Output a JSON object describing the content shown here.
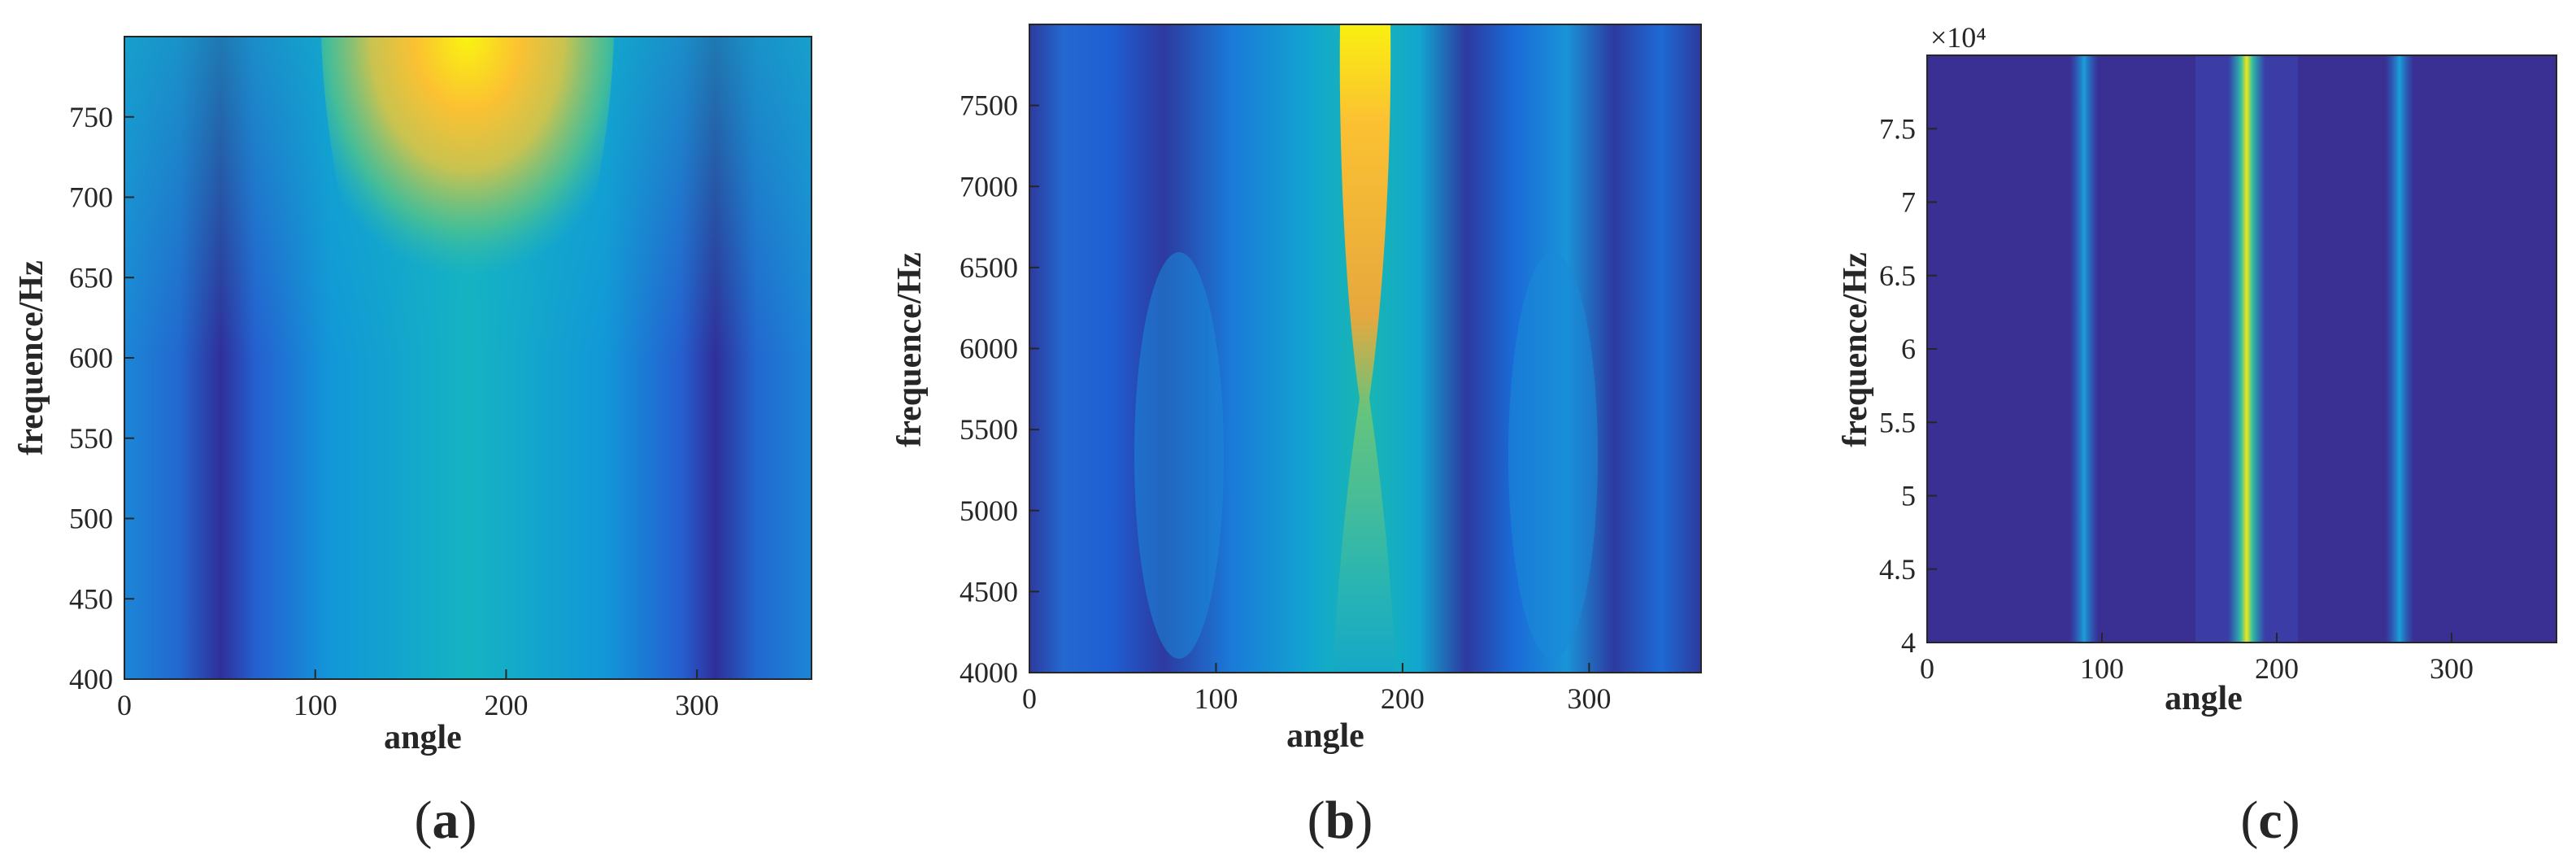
{
  "figure": {
    "panels": [
      {
        "caption_open": "(",
        "caption_letter": "a",
        "caption_close": ")"
      },
      {
        "caption_open": "(",
        "caption_letter": "b",
        "caption_close": ")"
      },
      {
        "caption_open": "(",
        "caption_letter": "c",
        "caption_close": ")"
      }
    ]
  },
  "chart_data": [
    {
      "type": "heatmap",
      "panel": "a",
      "title": "",
      "xlabel": "angle",
      "ylabel": "frequence/Hz",
      "xlim": [
        0,
        360
      ],
      "ylim": [
        400,
        800
      ],
      "xticks": [
        0,
        100,
        200,
        300
      ],
      "yticks": [
        400,
        450,
        500,
        550,
        600,
        650,
        700,
        750
      ],
      "ytick_labels": [
        "400",
        "450",
        "500",
        "550",
        "600",
        "650",
        "700",
        "750"
      ],
      "exponent_label": "",
      "colormap": "parula",
      "description_features": {
        "low_troughs_angles": [
          50,
          310
        ],
        "peak_angle": 180,
        "peak_region_freq": [
          560,
          800
        ]
      }
    },
    {
      "type": "heatmap",
      "panel": "b",
      "title": "",
      "xlabel": "angle",
      "ylabel": "frequence/Hz",
      "xlim": [
        0,
        360
      ],
      "ylim": [
        4000,
        8000
      ],
      "xticks": [
        0,
        100,
        200,
        300
      ],
      "yticks": [
        4000,
        4500,
        5000,
        5500,
        6000,
        6500,
        7000,
        7500
      ],
      "ytick_labels": [
        "4000",
        "4500",
        "5000",
        "5500",
        "6000",
        "6500",
        "7000",
        "7500"
      ],
      "exponent_label": "",
      "colormap": "parula",
      "description_features": {
        "peak_angle": 180,
        "peak_region_freq": [
          5700,
          8000
        ]
      }
    },
    {
      "type": "heatmap",
      "panel": "c",
      "title": "",
      "xlabel": "angle",
      "ylabel": "frequence/Hz",
      "xlim": [
        0,
        360
      ],
      "ylim": [
        4,
        8
      ],
      "xticks": [
        0,
        100,
        200,
        300
      ],
      "yticks": [
        4,
        4.5,
        5,
        5.5,
        6,
        6.5,
        7,
        7.5
      ],
      "ytick_labels": [
        "4",
        "4.5",
        "5",
        "5.5",
        "6",
        "6.5",
        "7",
        "7.5"
      ],
      "exponent_label": "×10⁴",
      "colormap": "parula",
      "description_features": {
        "bright_lines_angles": [
          90,
          180,
          270
        ]
      }
    }
  ]
}
